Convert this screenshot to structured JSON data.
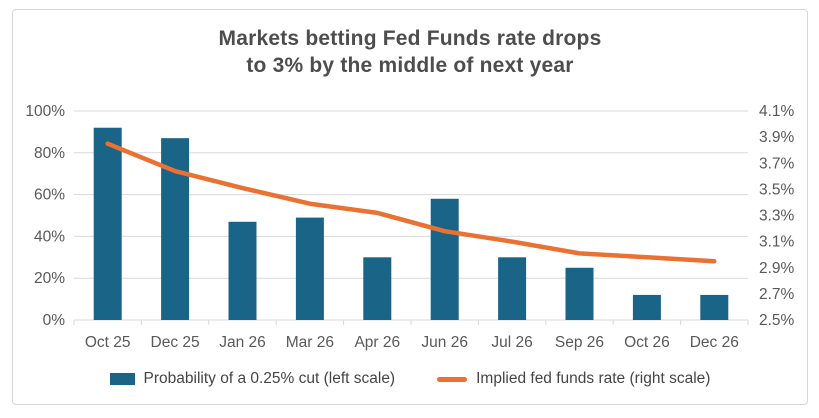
{
  "chart_data": {
    "type": "combo",
    "title": "Markets betting Fed Funds rate drops to 3% by the middle of next year",
    "title_lines": [
      "Markets betting Fed Funds rate drops",
      "to 3% by the middle of next year"
    ],
    "categories": [
      "Oct 25",
      "Dec 25",
      "Jan 26",
      "Mar 26",
      "Apr 26",
      "Jun 26",
      "Jul 26",
      "Sep 26",
      "Oct 26",
      "Dec 26"
    ],
    "series": [
      {
        "name": "Probability of a 0.25% cut (left scale)",
        "type": "bar",
        "axis": "left",
        "color": "#1a6488",
        "values": [
          92,
          87,
          47,
          49,
          30,
          58,
          30,
          25,
          12,
          12
        ]
      },
      {
        "name": "Implied fed funds rate (right scale)",
        "type": "line",
        "axis": "right",
        "color": "#e97132",
        "values": [
          3.85,
          3.64,
          3.51,
          3.39,
          3.32,
          3.18,
          3.1,
          3.01,
          2.98,
          2.95
        ]
      }
    ],
    "left_axis": {
      "min": 0,
      "max": 100,
      "step": 20,
      "tick_labels": [
        "0%",
        "20%",
        "40%",
        "60%",
        "80%",
        "100%"
      ]
    },
    "right_axis": {
      "min": 2.5,
      "max": 4.1,
      "step": 0.2,
      "tick_labels": [
        "2.5%",
        "2.7%",
        "2.9%",
        "3.1%",
        "3.3%",
        "3.5%",
        "3.7%",
        "3.9%",
        "4.1%"
      ]
    },
    "grid": true,
    "legend_position": "bottom",
    "colors": {
      "text": "#595959",
      "grid": "#d9d9d9",
      "title": "#4d4d4d",
      "frame_border": "#d8d8d8",
      "background": "#ffffff"
    }
  }
}
